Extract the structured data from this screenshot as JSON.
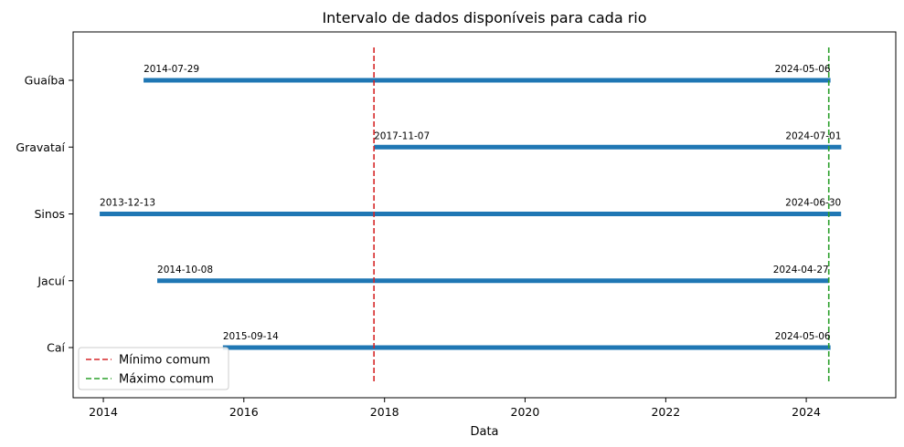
{
  "chart_data": {
    "type": "bar",
    "title": "Intervalo de dados disponíveis para cada rio",
    "xlabel": "Data",
    "ylabel": "",
    "x_axis": "date",
    "xlim": [
      "2013-07-28",
      "2025-04-10"
    ],
    "x_ticks": [
      "2014",
      "2016",
      "2018",
      "2020",
      "2022",
      "2024"
    ],
    "categories": [
      "Caí",
      "Jacuí",
      "Sinos",
      "Gravataí",
      "Guaíba"
    ],
    "ranges": [
      {
        "name": "Caí",
        "start": "2015-09-14",
        "end": "2024-05-06"
      },
      {
        "name": "Jacuí",
        "start": "2014-10-08",
        "end": "2024-04-27"
      },
      {
        "name": "Sinos",
        "start": "2013-12-13",
        "end": "2024-06-30"
      },
      {
        "name": "Gravataí",
        "start": "2017-11-07",
        "end": "2024-07-01"
      },
      {
        "name": "Guaíba",
        "start": "2014-07-29",
        "end": "2024-05-06"
      }
    ],
    "reference_lines": [
      {
        "name": "Mínimo comum",
        "date": "2017-11-07",
        "color": "#d62728",
        "style": "dashed"
      },
      {
        "name": "Máximo comum",
        "date": "2024-04-27",
        "color": "#2ca02c",
        "style": "dashed"
      }
    ],
    "bar_color": "#1f77b4",
    "legend": "lower-left",
    "grid": false
  }
}
